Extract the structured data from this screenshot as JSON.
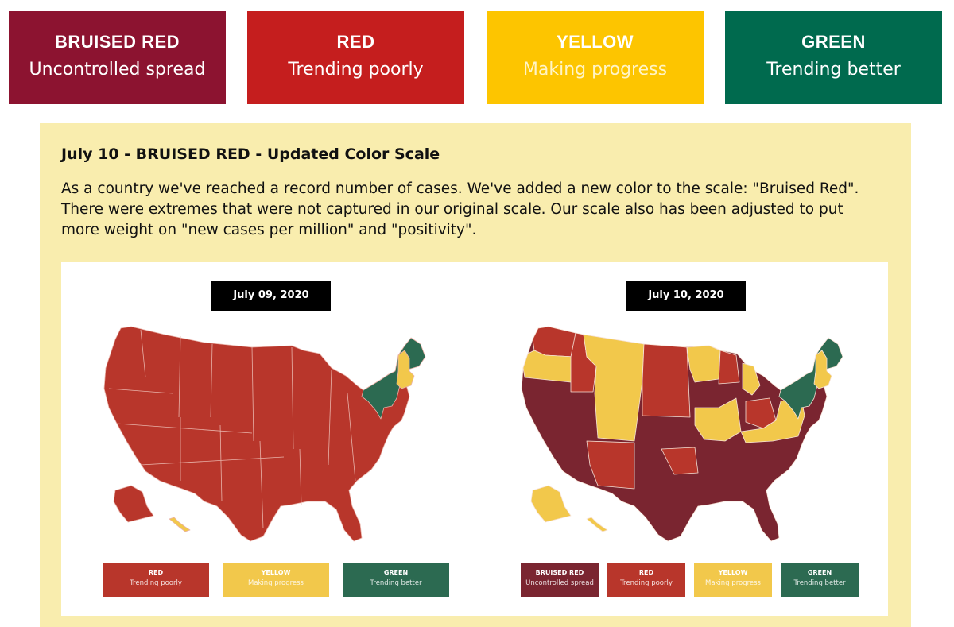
{
  "colors": {
    "bruised_red": "#7a2530",
    "red": "#b8362b",
    "yellow": "#f2c84b",
    "green": "#2c6a51"
  },
  "top_cards": [
    {
      "title": "BRUISED RED",
      "subtitle": "Uncontrolled spread",
      "color": "#8c1330"
    },
    {
      "title": "RED",
      "subtitle": "Trending poorly",
      "color": "#c51e1e"
    },
    {
      "title": "YELLOW",
      "subtitle": "Making progress",
      "color": "#fdc500"
    },
    {
      "title": "GREEN",
      "subtitle": "Trending better",
      "color": "#006a4e"
    }
  ],
  "update": {
    "title": "July 10 - BRUISED RED - Updated Color Scale",
    "body": "As a country we've reached a record number of cases. We've added a new color to the scale: \"Bruised Red\". There were extremes that were not captured in our original scale. Our scale also has been adjusted to put more weight on \"new cases per million\" and \"positivity\"."
  },
  "maps": [
    {
      "date": "July 09, 2020",
      "legend": [
        {
          "title": "RED",
          "subtitle": "Trending poorly",
          "color": "#b8362b"
        },
        {
          "title": "YELLOW",
          "subtitle": "Making progress",
          "color": "#f2c84b"
        },
        {
          "title": "GREEN",
          "subtitle": "Trending better",
          "color": "#2c6a51"
        }
      ]
    },
    {
      "date": "July 10, 2020",
      "legend": [
        {
          "title": "BRUISED RED",
          "subtitle": "Uncontrolled spread",
          "color": "#7a2530"
        },
        {
          "title": "RED",
          "subtitle": "Trending poorly",
          "color": "#b8362b"
        },
        {
          "title": "YELLOW",
          "subtitle": "Making progress",
          "color": "#f2c84b"
        },
        {
          "title": "GREEN",
          "subtitle": "Trending better",
          "color": "#2c6a51"
        }
      ]
    }
  ]
}
